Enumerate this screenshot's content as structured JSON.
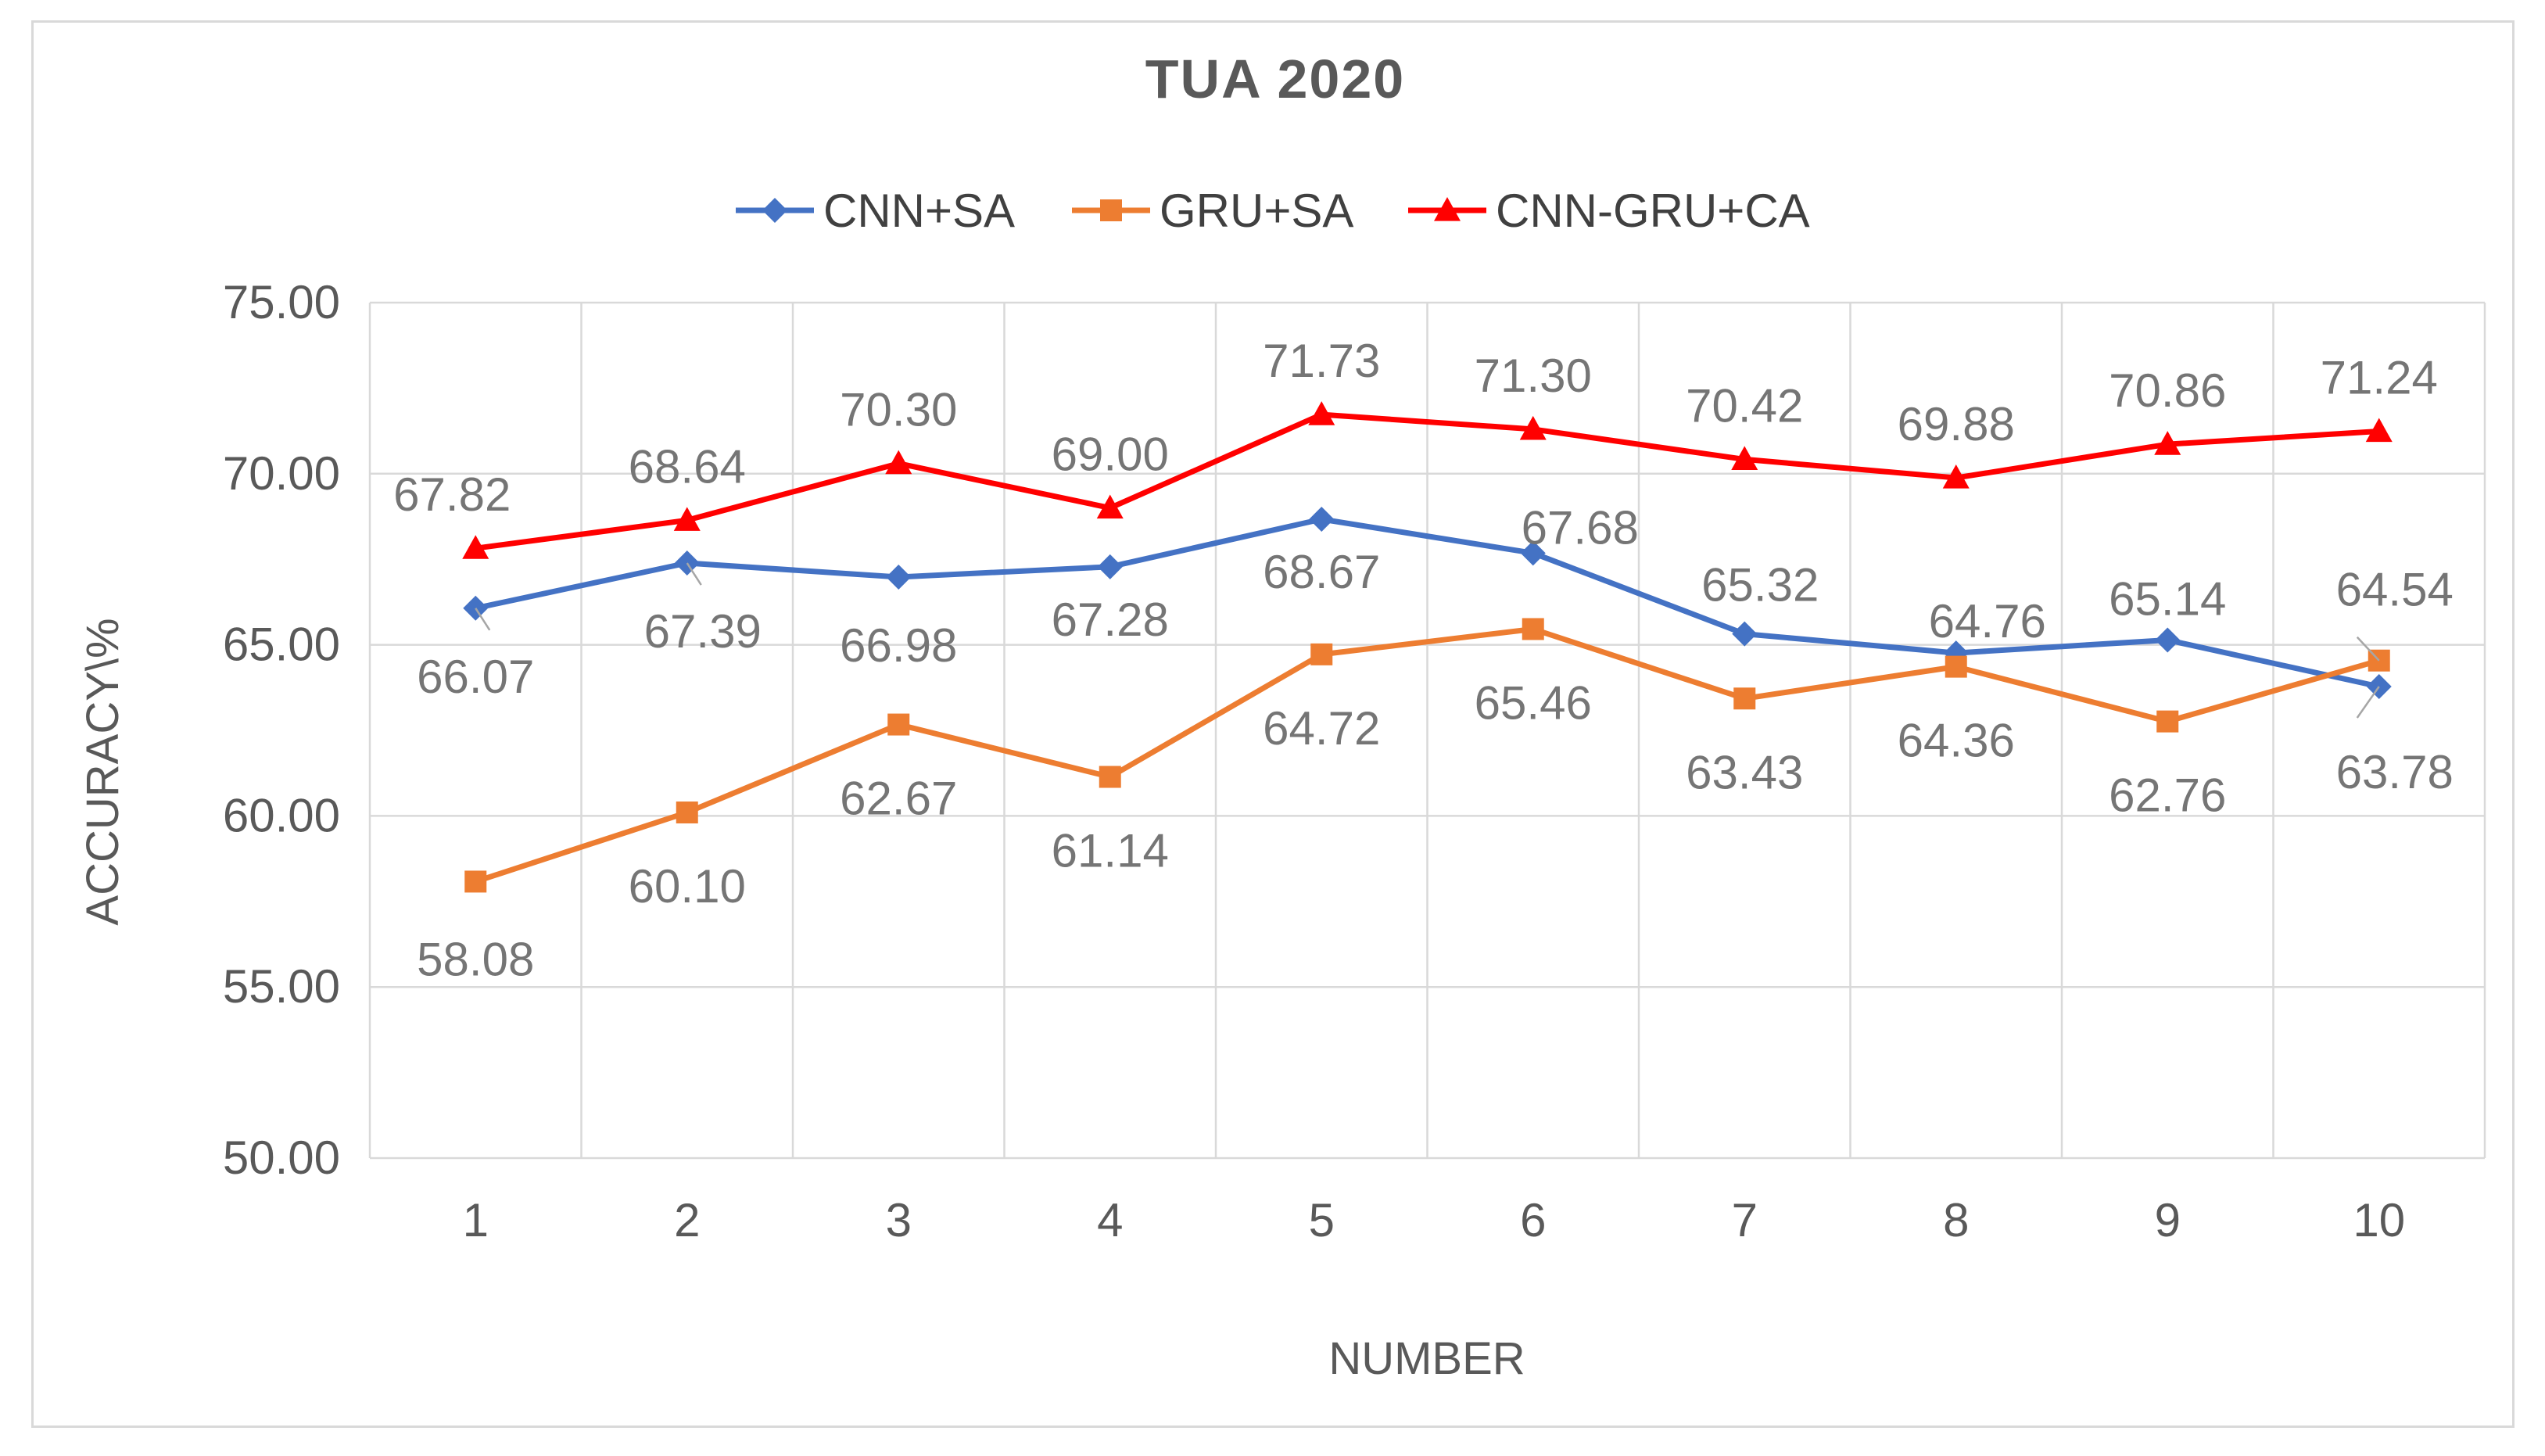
{
  "chart_data": {
    "type": "line",
    "title": "TUA 2020",
    "xlabel": "NUMBER",
    "ylabel": "ACCURACY\\%",
    "categories": [
      "1",
      "2",
      "3",
      "4",
      "5",
      "6",
      "7",
      "8",
      "9",
      "10"
    ],
    "ylim": [
      50,
      75
    ],
    "yticks": [
      "50.00",
      "55.00",
      "60.00",
      "65.00",
      "70.00",
      "75.00"
    ],
    "legend_position": "top",
    "series": [
      {
        "name": "CNN+SA",
        "color": "#4472c4",
        "marker": "diamond",
        "values": [
          66.07,
          67.39,
          66.98,
          67.28,
          68.67,
          67.68,
          65.32,
          64.76,
          65.14,
          63.78
        ],
        "labels": [
          "66.07",
          "67.39",
          "66.98",
          "67.28",
          "68.67",
          "67.68",
          "65.32",
          "64.76",
          "65.14",
          "63.78"
        ]
      },
      {
        "name": "GRU+SA",
        "color": "#ed7d31",
        "marker": "square",
        "values": [
          58.08,
          60.1,
          62.67,
          61.14,
          64.72,
          65.46,
          63.43,
          64.36,
          62.76,
          64.54
        ],
        "labels": [
          "58.08",
          "60.10",
          "62.67",
          "61.14",
          "64.72",
          "65.46",
          "63.43",
          "64.36",
          "62.76",
          "64.54"
        ]
      },
      {
        "name": "CNN-GRU+CA",
        "color": "#ff0000",
        "marker": "triangle",
        "values": [
          67.82,
          68.64,
          70.3,
          69.0,
          71.73,
          71.3,
          70.42,
          69.88,
          70.86,
          71.24
        ],
        "labels": [
          "67.82",
          "68.64",
          "70.30",
          "69.00",
          "71.73",
          "71.30",
          "70.42",
          "69.88",
          "70.86",
          "71.24"
        ]
      }
    ]
  }
}
